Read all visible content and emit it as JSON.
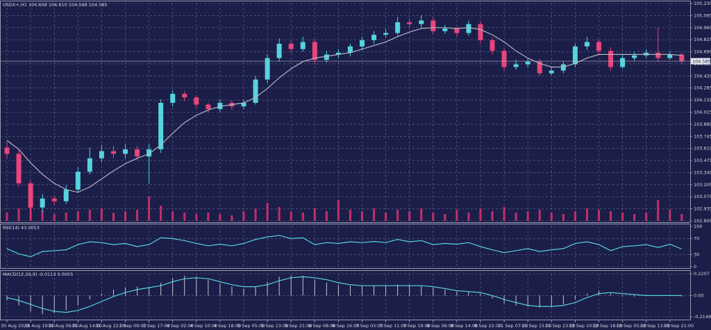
{
  "chart_data": [
    {
      "type": "candlestick",
      "title": "USDX+,H1  104.608 104.610 104.568 104.585",
      "categories": [
        "30 Aug 2023",
        null,
        "30 Aug 19:00",
        null,
        "31 Aug 06:00",
        null,
        "31 Aug 14:00",
        null,
        "31 Aug 22:00",
        null,
        "1 Sep 09:00",
        null,
        "1 Sep 17:00",
        null,
        "4 Sep 02:00",
        null,
        "4 Sep 10:00",
        null,
        "4 Sep 18:00",
        null,
        "5 Sep 05:00",
        null,
        "5 Sep 13:00",
        null,
        "5 Sep 21:00",
        null,
        "6 Sep 08:00",
        null,
        "6 Sep 16:00",
        null,
        "7 Sep 03:00",
        null,
        "7 Sep 11:00",
        null,
        "7 Sep 19:00",
        null,
        "8 Sep 06:00",
        null,
        "8 Sep 14:00",
        null,
        "8 Sep 22:00",
        null,
        "11 Sep 07:00",
        null,
        "11 Sep 15:00",
        null,
        "11 Sep 23:00",
        null,
        "12 Sep 10:00",
        null,
        "12 Sep 18:00",
        null,
        "13 Sep 05:00",
        null,
        "13 Sep 13:00",
        null,
        "13 Sep 21:00",
        null
      ],
      "open": [
        103.62,
        103.55,
        103.22,
        102.95,
        103.05,
        103.02,
        103.15,
        103.35,
        103.5,
        103.58,
        103.55,
        103.6,
        103.52,
        103.6,
        104.12,
        104.22,
        104.18,
        104.1,
        104.05,
        104.12,
        104.08,
        104.12,
        104.38,
        104.62,
        104.78,
        104.72,
        104.8,
        104.6,
        104.66,
        104.68,
        104.75,
        104.82,
        104.88,
        104.9,
        105.02,
        105.0,
        105.04,
        104.92,
        104.95,
        104.9,
        105.0,
        104.82,
        104.7,
        104.52,
        104.55,
        104.58,
        104.45,
        104.48,
        104.55,
        104.75,
        104.8,
        104.7,
        104.52,
        104.62,
        104.65,
        104.68,
        104.62,
        104.66
      ],
      "high": [
        103.68,
        103.6,
        103.25,
        103.1,
        103.08,
        103.2,
        103.4,
        103.62,
        103.65,
        103.64,
        103.66,
        103.64,
        103.66,
        104.16,
        104.26,
        104.25,
        104.2,
        104.12,
        104.16,
        104.15,
        104.16,
        104.42,
        104.66,
        104.84,
        104.82,
        104.86,
        104.83,
        104.7,
        104.72,
        104.78,
        104.86,
        104.92,
        104.95,
        105.08,
        105.06,
        105.1,
        105.08,
        104.99,
        104.97,
        105.04,
        105.03,
        104.85,
        104.73,
        104.6,
        104.62,
        104.61,
        104.52,
        104.58,
        104.78,
        104.86,
        104.83,
        104.74,
        104.66,
        104.69,
        104.72,
        104.96,
        104.7,
        104.68
      ],
      "low": [
        103.5,
        103.18,
        102.82,
        102.9,
        102.98,
        102.99,
        103.12,
        103.32,
        103.46,
        103.5,
        103.5,
        103.48,
        103.22,
        103.56,
        104.08,
        104.14,
        104.06,
        104.01,
        104.02,
        104.04,
        104.05,
        104.1,
        104.34,
        104.58,
        104.68,
        104.69,
        104.55,
        104.57,
        104.62,
        104.64,
        104.71,
        104.78,
        104.85,
        104.87,
        104.96,
        104.96,
        104.88,
        104.89,
        104.86,
        104.87,
        104.78,
        104.66,
        104.48,
        104.49,
        104.52,
        104.42,
        104.43,
        104.45,
        104.52,
        104.71,
        104.66,
        104.48,
        104.5,
        104.59,
        104.62,
        104.58,
        104.6,
        104.55
      ],
      "close": [
        103.55,
        103.22,
        102.95,
        103.05,
        103.02,
        103.15,
        103.35,
        103.5,
        103.58,
        103.55,
        103.6,
        103.52,
        103.6,
        104.12,
        104.22,
        104.18,
        104.1,
        104.05,
        104.12,
        104.08,
        104.12,
        104.38,
        104.62,
        104.78,
        104.72,
        104.8,
        104.6,
        104.66,
        104.68,
        104.75,
        104.82,
        104.88,
        104.9,
        105.02,
        105.0,
        105.04,
        104.92,
        104.95,
        104.9,
        105.0,
        104.82,
        104.7,
        104.52,
        104.55,
        104.58,
        104.45,
        104.48,
        104.55,
        104.75,
        104.8,
        104.7,
        104.52,
        104.62,
        104.65,
        104.68,
        104.62,
        104.66,
        104.585
      ],
      "up_color": "#55d3df",
      "down_color": "#e8457c",
      "moving_average": {
        "color": "#b4b4c0",
        "values": [
          103.7,
          103.6,
          103.45,
          103.32,
          103.22,
          103.15,
          103.12,
          103.18,
          103.27,
          103.36,
          103.44,
          103.5,
          103.55,
          103.65,
          103.78,
          103.9,
          103.98,
          104.04,
          104.08,
          104.1,
          104.12,
          104.18,
          104.28,
          104.4,
          104.5,
          104.58,
          104.62,
          104.64,
          104.66,
          104.68,
          104.72,
          104.76,
          104.8,
          104.86,
          104.91,
          104.95,
          104.96,
          104.96,
          104.95,
          104.96,
          104.94,
          104.88,
          104.8,
          104.7,
          104.62,
          104.56,
          104.52,
          104.52,
          104.56,
          104.62,
          104.66,
          104.66,
          104.66,
          104.66,
          104.66,
          104.66,
          104.66,
          104.65
        ]
      },
      "volume": {
        "color": "#c2306a",
        "values": [
          12,
          18,
          22,
          15,
          10,
          12,
          14,
          16,
          18,
          12,
          14,
          16,
          35,
          22,
          14,
          12,
          10,
          12,
          10,
          8,
          14,
          18,
          26,
          20,
          14,
          12,
          18,
          14,
          30,
          16,
          14,
          18,
          12,
          16,
          14,
          18,
          12,
          10,
          16,
          12,
          18,
          14,
          20,
          12,
          14,
          16,
          12,
          10,
          14,
          18,
          16,
          14,
          12,
          10,
          12,
          30,
          16,
          10
        ]
      },
      "last_price": 104.585,
      "ylim": [
        102.8,
        105.23
      ],
      "yticks": [
        {
          "value": 105.23,
          "label": "105.230"
        },
        {
          "value": 105.095,
          "label": "105.095"
        },
        {
          "value": 104.96,
          "label": "104.960"
        },
        {
          "value": 104.825,
          "label": "104.825"
        },
        {
          "value": 104.69,
          "label": "104.690"
        },
        {
          "value": 104.555,
          "label": "104.555"
        },
        {
          "value": 104.42,
          "label": "104.420"
        },
        {
          "value": 104.285,
          "label": "104.285"
        },
        {
          "value": 104.15,
          "label": "104.150"
        },
        {
          "value": 104.015,
          "label": "104.015"
        },
        {
          "value": 103.88,
          "label": "103.880"
        },
        {
          "value": 103.745,
          "label": "103.745"
        },
        {
          "value": 103.61,
          "label": "103.610"
        },
        {
          "value": 103.475,
          "label": "103.475"
        },
        {
          "value": 103.34,
          "label": "103.340"
        },
        {
          "value": 103.205,
          "label": "103.205"
        },
        {
          "value": 103.07,
          "label": "103.070"
        },
        {
          "value": 102.935,
          "label": "102.935"
        },
        {
          "value": 102.8,
          "label": "102.800"
        }
      ],
      "grid": true
    },
    {
      "type": "line",
      "title": "RSI(14) 43.0053",
      "color": "#55d3df",
      "values": [
        45,
        32,
        25,
        38,
        40,
        42,
        55,
        62,
        60,
        55,
        58,
        50,
        55,
        72,
        70,
        65,
        58,
        52,
        56,
        52,
        58,
        68,
        74,
        78,
        70,
        72,
        55,
        60,
        58,
        62,
        60,
        63,
        60,
        68,
        62,
        65,
        55,
        58,
        56,
        60,
        50,
        42,
        35,
        40,
        45,
        38,
        42,
        45,
        58,
        62,
        55,
        40,
        50,
        52,
        55,
        48,
        56,
        44
      ],
      "ylim": [
        0,
        100
      ],
      "yticks": [
        100,
        70,
        30,
        0
      ],
      "grid": true
    },
    {
      "type": "macd",
      "title": "MACD(12,26,9) -0.0113 0.0005",
      "histogram": {
        "color": "#c8c8d4",
        "values": [
          -0.05,
          -0.1,
          -0.16,
          -0.19,
          -0.18,
          -0.15,
          -0.1,
          -0.04,
          0.02,
          0.06,
          0.08,
          0.09,
          0.08,
          0.13,
          0.18,
          0.2,
          0.19,
          0.16,
          0.12,
          0.09,
          0.07,
          0.09,
          0.14,
          0.19,
          0.2,
          0.2,
          0.16,
          0.13,
          0.11,
          0.1,
          0.1,
          0.1,
          0.1,
          0.11,
          0.11,
          0.1,
          0.08,
          0.06,
          0.04,
          0.04,
          0.02,
          -0.03,
          -0.08,
          -0.1,
          -0.11,
          -0.12,
          -0.11,
          -0.09,
          -0.04,
          0.02,
          0.05,
          0.02,
          -0.01,
          -0.01,
          0.0,
          0.0,
          0.0,
          -0.01
        ]
      },
      "signal": {
        "color": "#55d3df",
        "values": [
          -0.02,
          -0.05,
          -0.09,
          -0.13,
          -0.16,
          -0.17,
          -0.15,
          -0.11,
          -0.06,
          -0.01,
          0.03,
          0.06,
          0.08,
          0.1,
          0.14,
          0.17,
          0.18,
          0.17,
          0.14,
          0.11,
          0.09,
          0.09,
          0.11,
          0.15,
          0.18,
          0.19,
          0.18,
          0.16,
          0.13,
          0.11,
          0.1,
          0.1,
          0.1,
          0.1,
          0.1,
          0.1,
          0.09,
          0.07,
          0.05,
          0.04,
          0.03,
          0.0,
          -0.04,
          -0.07,
          -0.1,
          -0.11,
          -0.11,
          -0.1,
          -0.07,
          -0.02,
          0.02,
          0.03,
          0.02,
          0.01,
          0.0,
          0.0,
          0.0,
          0.0
        ]
      },
      "ylim": [
        -0.2149,
        0.2207
      ],
      "yticks": [
        0.2207,
        {
          "value": 0,
          "label": "0.00"
        },
        -0.2149
      ],
      "grid": true
    }
  ]
}
